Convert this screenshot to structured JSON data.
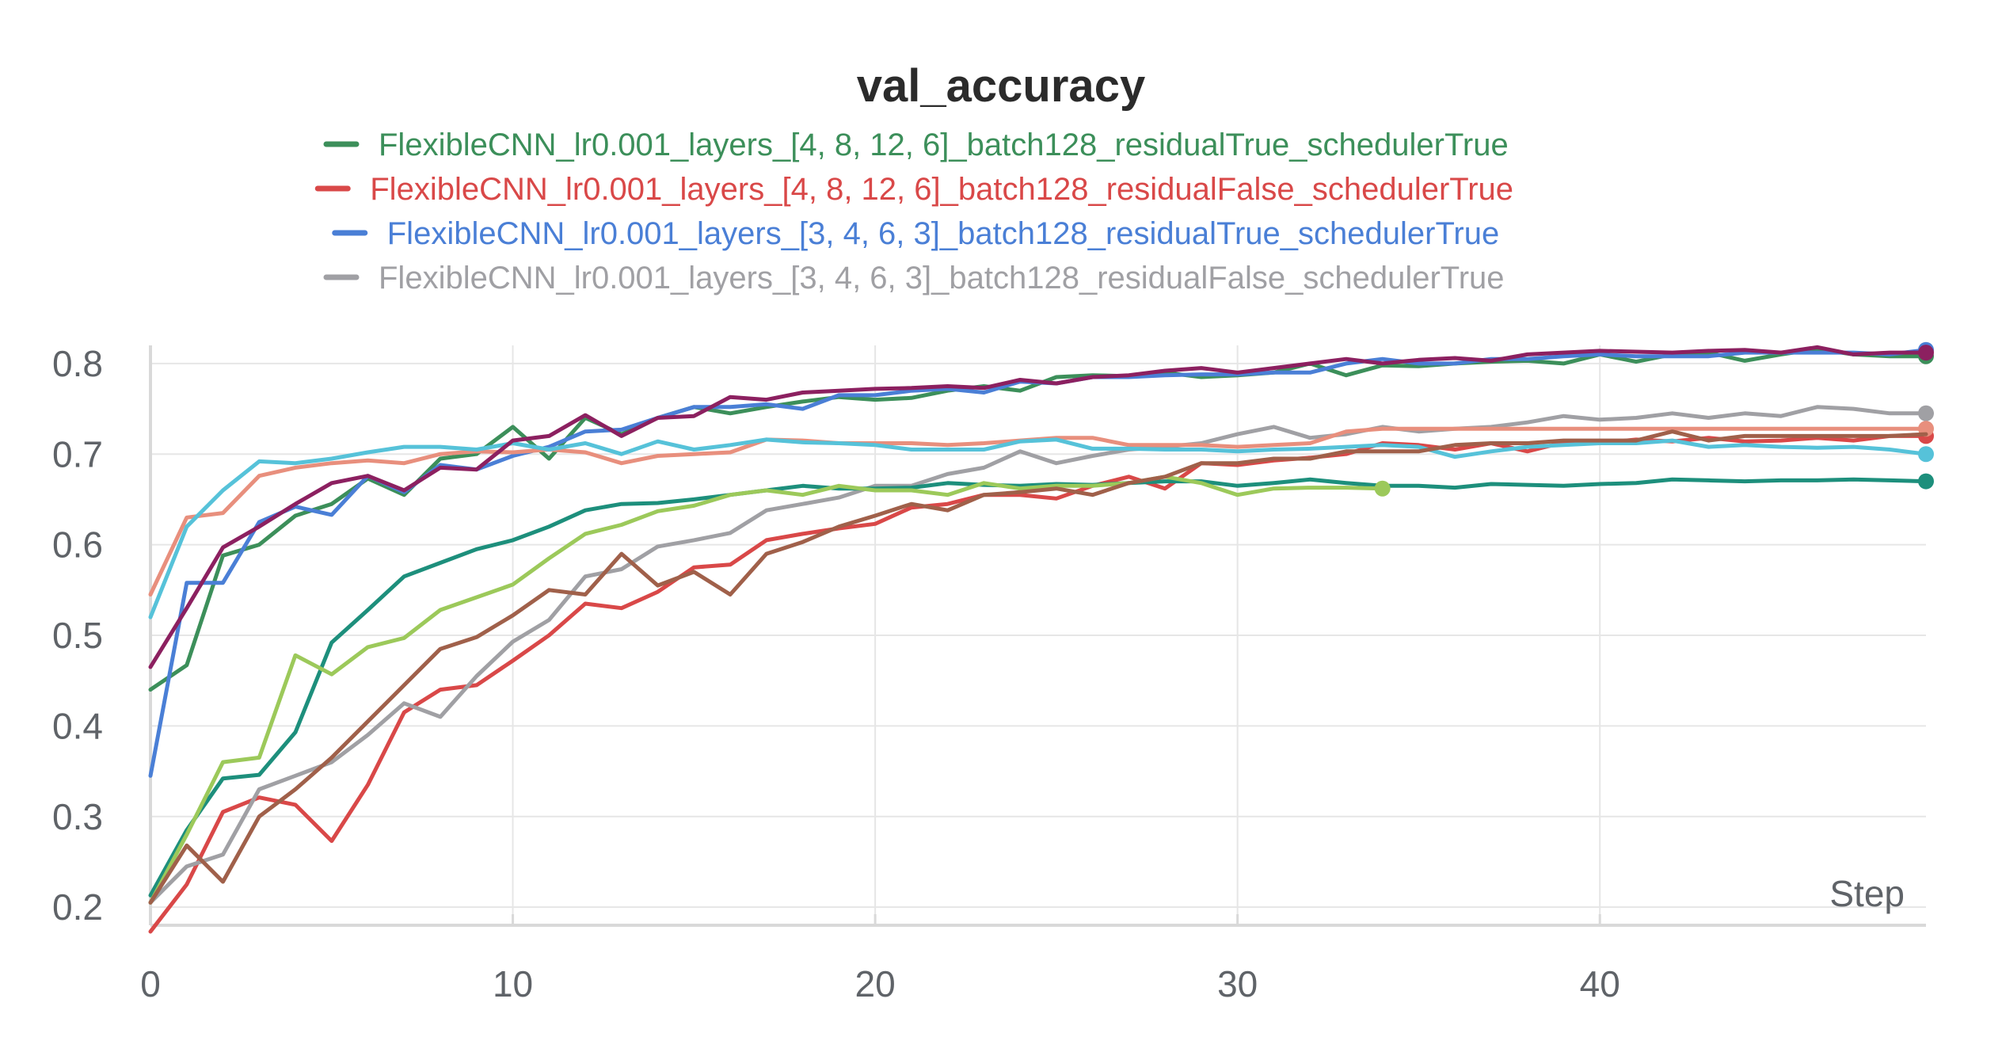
{
  "chart_data": {
    "type": "line",
    "title": "val_accuracy",
    "xlabel": "Step",
    "ylabel": "",
    "xlim": [
      0,
      49
    ],
    "ylim": [
      0.18,
      0.82
    ],
    "x_ticks": [
      0,
      10,
      20,
      30,
      40
    ],
    "y_ticks": [
      0.2,
      0.3,
      0.4,
      0.5,
      0.6,
      0.7,
      0.8
    ],
    "y_tick_labels": [
      "0.2",
      "0.3",
      "0.4",
      "0.5",
      "0.6",
      "0.7",
      "0.8"
    ],
    "grid": true,
    "legend_position": "top-center",
    "legend": [
      {
        "label": "FlexibleCNN_lr0.001_layers_[4, 8, 12, 6]_batch128_residualTrue_schedulerTrue",
        "color": "#3c8f5a"
      },
      {
        "label": "FlexibleCNN_lr0.001_layers_[4, 8, 12, 6]_batch128_residualFalse_schedulerTrue",
        "color": "#d94848"
      },
      {
        "label": "FlexibleCNN_lr0.001_layers_[3, 4, 6, 3]_batch128_residualTrue_schedulerTrue",
        "color": "#4a7fd6"
      },
      {
        "label": "FlexibleCNN_lr0.001_layers_[3, 4, 6, 3]_batch128_residualFalse_schedulerTrue",
        "color": "#a0a0a4"
      }
    ],
    "series": [
      {
        "color": "#3c8f5a",
        "end_marker": true,
        "y": [
          0.44,
          0.467,
          0.588,
          0.6,
          0.632,
          0.645,
          0.673,
          0.655,
          0.695,
          0.7,
          0.73,
          0.695,
          0.74,
          0.722,
          0.74,
          0.752,
          0.745,
          0.752,
          0.758,
          0.763,
          0.76,
          0.762,
          0.77,
          0.775,
          0.77,
          0.785,
          0.787,
          0.786,
          0.79,
          0.785,
          0.787,
          0.79,
          0.8,
          0.787,
          0.798,
          0.797,
          0.8,
          0.802,
          0.803,
          0.8,
          0.81,
          0.802,
          0.81,
          0.812,
          0.803,
          0.81,
          0.816,
          0.81,
          0.808,
          0.808
        ]
      },
      {
        "color": "#d94848",
        "end_marker": true,
        "y": [
          0.173,
          0.225,
          0.305,
          0.321,
          0.313,
          0.273,
          0.335,
          0.415,
          0.44,
          0.445,
          0.472,
          0.5,
          0.535,
          0.53,
          0.548,
          0.575,
          0.578,
          0.605,
          0.612,
          0.618,
          0.623,
          0.641,
          0.645,
          0.655,
          0.655,
          0.651,
          0.665,
          0.675,
          0.662,
          0.69,
          0.688,
          0.693,
          0.696,
          0.7,
          0.712,
          0.71,
          0.705,
          0.712,
          0.703,
          0.713,
          0.712,
          0.716,
          0.714,
          0.718,
          0.714,
          0.715,
          0.718,
          0.715,
          0.72,
          0.72
        ]
      },
      {
        "color": "#4a7fd6",
        "end_marker": true,
        "y": [
          0.345,
          0.558,
          0.558,
          0.625,
          0.642,
          0.633,
          0.676,
          0.658,
          0.688,
          0.683,
          0.698,
          0.708,
          0.725,
          0.727,
          0.74,
          0.752,
          0.752,
          0.755,
          0.75,
          0.765,
          0.765,
          0.77,
          0.772,
          0.768,
          0.78,
          0.778,
          0.785,
          0.785,
          0.787,
          0.788,
          0.788,
          0.79,
          0.79,
          0.8,
          0.805,
          0.8,
          0.8,
          0.805,
          0.805,
          0.808,
          0.81,
          0.808,
          0.808,
          0.808,
          0.812,
          0.812,
          0.812,
          0.812,
          0.81,
          0.815
        ]
      },
      {
        "color": "#a0a0a4",
        "end_marker": true,
        "y": [
          0.205,
          0.245,
          0.258,
          0.33,
          0.345,
          0.36,
          0.39,
          0.425,
          0.41,
          0.455,
          0.493,
          0.517,
          0.565,
          0.573,
          0.598,
          0.605,
          0.613,
          0.638,
          0.645,
          0.652,
          0.665,
          0.665,
          0.678,
          0.685,
          0.703,
          0.69,
          0.698,
          0.705,
          0.708,
          0.712,
          0.722,
          0.73,
          0.718,
          0.722,
          0.73,
          0.725,
          0.728,
          0.73,
          0.735,
          0.742,
          0.738,
          0.74,
          0.745,
          0.74,
          0.745,
          0.742,
          0.752,
          0.75,
          0.745,
          0.745
        ]
      },
      {
        "color": "#e88f7d",
        "end_marker": true,
        "y": [
          0.545,
          0.63,
          0.635,
          0.676,
          0.685,
          0.69,
          0.693,
          0.69,
          0.7,
          0.703,
          0.702,
          0.705,
          0.702,
          0.69,
          0.698,
          0.7,
          0.702,
          0.716,
          0.715,
          0.712,
          0.712,
          0.712,
          0.71,
          0.712,
          0.715,
          0.718,
          0.718,
          0.71,
          0.71,
          0.71,
          0.708,
          0.71,
          0.712,
          0.725,
          0.728,
          0.728,
          0.728,
          0.728,
          0.728,
          0.728,
          0.728,
          0.728,
          0.728,
          0.728,
          0.728,
          0.728,
          0.728,
          0.728,
          0.728,
          0.728
        ]
      },
      {
        "color": "#56c2d9",
        "end_marker": true,
        "y": [
          0.52,
          0.62,
          0.66,
          0.692,
          0.69,
          0.695,
          0.702,
          0.708,
          0.708,
          0.705,
          0.712,
          0.705,
          0.712,
          0.7,
          0.714,
          0.705,
          0.71,
          0.716,
          0.713,
          0.712,
          0.71,
          0.705,
          0.705,
          0.705,
          0.714,
          0.716,
          0.706,
          0.706,
          0.705,
          0.705,
          0.703,
          0.705,
          0.706,
          0.708,
          0.71,
          0.708,
          0.697,
          0.703,
          0.708,
          0.71,
          0.712,
          0.712,
          0.715,
          0.708,
          0.71,
          0.708,
          0.707,
          0.708,
          0.705,
          0.7
        ]
      },
      {
        "color": "#8c2060",
        "end_marker": true,
        "y": [
          0.465,
          0.53,
          0.597,
          0.62,
          0.645,
          0.668,
          0.676,
          0.66,
          0.685,
          0.683,
          0.715,
          0.72,
          0.743,
          0.72,
          0.74,
          0.742,
          0.763,
          0.76,
          0.768,
          0.77,
          0.772,
          0.773,
          0.775,
          0.773,
          0.782,
          0.778,
          0.785,
          0.787,
          0.792,
          0.795,
          0.79,
          0.795,
          0.8,
          0.805,
          0.8,
          0.804,
          0.806,
          0.803,
          0.81,
          0.812,
          0.814,
          0.813,
          0.812,
          0.814,
          0.815,
          0.812,
          0.818,
          0.81,
          0.812,
          0.812
        ]
      },
      {
        "color": "#1d8f7c",
        "end_marker": true,
        "y": [
          0.213,
          0.285,
          0.342,
          0.346,
          0.393,
          0.492,
          0.528,
          0.565,
          0.58,
          0.595,
          0.605,
          0.62,
          0.638,
          0.645,
          0.646,
          0.65,
          0.655,
          0.66,
          0.665,
          0.662,
          0.662,
          0.663,
          0.668,
          0.666,
          0.665,
          0.667,
          0.666,
          0.668,
          0.67,
          0.67,
          0.665,
          0.668,
          0.672,
          0.668,
          0.665,
          0.665,
          0.663,
          0.667,
          0.666,
          0.665,
          0.667,
          0.668,
          0.672,
          0.671,
          0.67,
          0.671,
          0.671,
          0.672,
          0.671,
          0.67
        ]
      },
      {
        "color": "#9cc95a",
        "end_marker": true,
        "y": [
          0.205,
          0.28,
          0.36,
          0.365,
          0.478,
          0.457,
          0.487,
          0.497,
          0.528,
          0.542,
          0.556,
          0.585,
          0.612,
          0.622,
          0.637,
          0.643,
          0.655,
          0.66,
          0.655,
          0.665,
          0.66,
          0.66,
          0.655,
          0.668,
          0.662,
          0.665,
          0.665,
          0.668,
          0.675,
          0.668,
          0.655,
          0.662,
          0.663,
          0.663,
          0.662
        ]
      },
      {
        "color": "#a0604a",
        "end_marker": false,
        "y": [
          0.205,
          0.268,
          0.228,
          0.3,
          0.33,
          0.365,
          0.405,
          0.445,
          0.485,
          0.498,
          0.522,
          0.55,
          0.545,
          0.59,
          0.555,
          0.57,
          0.545,
          0.59,
          0.603,
          0.62,
          0.632,
          0.645,
          0.638,
          0.655,
          0.658,
          0.662,
          0.655,
          0.668,
          0.675,
          0.69,
          0.69,
          0.695,
          0.695,
          0.703,
          0.703,
          0.703,
          0.71,
          0.712,
          0.712,
          0.715,
          0.715,
          0.715,
          0.725,
          0.715,
          0.72,
          0.72,
          0.72,
          0.72,
          0.72,
          0.722
        ]
      }
    ]
  }
}
